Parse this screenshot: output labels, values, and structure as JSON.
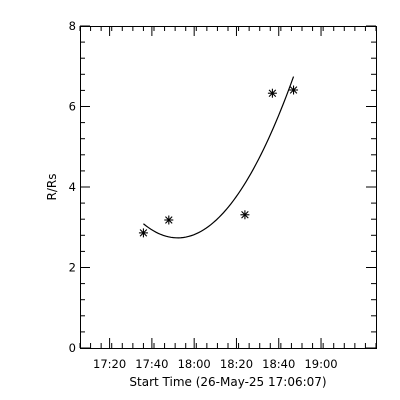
{
  "chart_data": {
    "type": "scatter",
    "title": "",
    "xlabel": "Start Time (26-May-25 17:06:07)",
    "ylabel": "R/Rs",
    "xlim": [
      "17:06",
      "19:26"
    ],
    "ylim": [
      0,
      8
    ],
    "x_ticks": [
      "17:20",
      "17:40",
      "18:00",
      "18:20",
      "18:40",
      "19:00"
    ],
    "y_ticks": [
      "0",
      "2",
      "4",
      "6",
      "8"
    ],
    "grid": false,
    "legend": "none",
    "series": [
      {
        "marker": "asterisk",
        "points": [
          {
            "x": "17:36",
            "y": 2.86
          },
          {
            "x": "17:48",
            "y": 3.18
          },
          {
            "x": "18:24",
            "y": 3.31
          },
          {
            "x": "18:37",
            "y": 6.33
          },
          {
            "x": "18:47",
            "y": 6.41
          }
        ]
      },
      {
        "marker": "none",
        "style": "line",
        "fit": "quadratic",
        "x_range": [
          "17:36",
          "18:47"
        ],
        "points": [
          {
            "x": "17:36",
            "y": 3.0
          },
          {
            "x": "17:44",
            "y": 2.83
          },
          {
            "x": "17:52",
            "y": 2.82
          },
          {
            "x": "18:00",
            "y": 2.98
          },
          {
            "x": "18:08",
            "y": 3.3
          },
          {
            "x": "18:16",
            "y": 3.78
          },
          {
            "x": "18:24",
            "y": 4.43
          },
          {
            "x": "18:32",
            "y": 5.24
          },
          {
            "x": "18:40",
            "y": 6.21
          },
          {
            "x": "18:47",
            "y": 6.63
          }
        ]
      }
    ]
  },
  "colors": {
    "background": "#ffffff",
    "foreground": "#000000"
  }
}
